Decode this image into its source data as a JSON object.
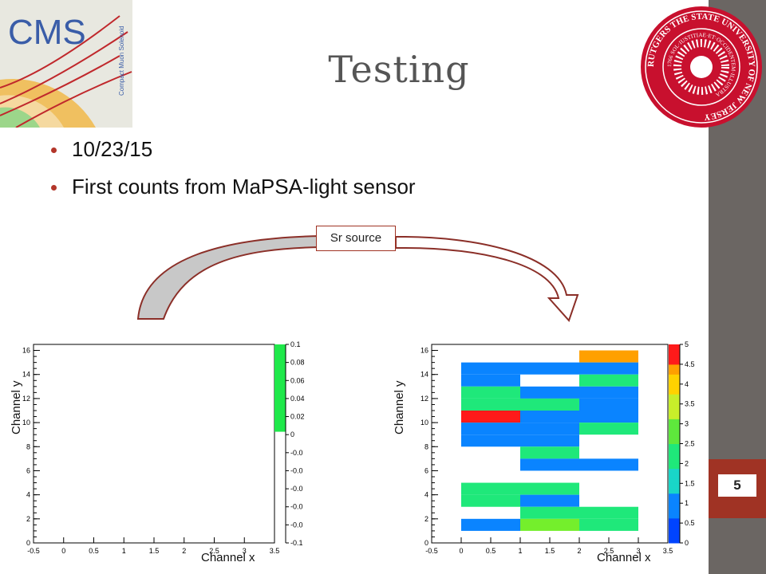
{
  "slide": {
    "title": "Testing",
    "bullets": [
      "10/23/15",
      "First counts from MaPSA-light sensor"
    ],
    "page_number": "5",
    "annotation": "Sr source"
  },
  "logos": {
    "cms": {
      "text": "CMS",
      "subtext": "Compact Muon Solenoid"
    },
    "rutgers": {
      "text": "RUTGERS THE STATE UNIVERSITY OF NEW JERSEY",
      "inner": "1766 SOL·IUSTITIAE·ET·OCCIDENTEM·ILLUSTRA"
    }
  },
  "colors": {
    "accent": "#a03324",
    "sidebar": "#6b6663",
    "title": "#555555"
  },
  "chart_data": [
    {
      "type": "heatmap",
      "title": "",
      "xlabel": "Channel x",
      "ylabel": "Channel y",
      "xlim": [
        -0.5,
        3.5
      ],
      "ylim": [
        0,
        16.5
      ],
      "xticks": [
        "-0.5",
        "0",
        "0.5",
        "1",
        "1.5",
        "2",
        "2.5",
        "3",
        "3.5"
      ],
      "yticks": [
        "0",
        "2",
        "4",
        "6",
        "8",
        "10",
        "12",
        "14",
        "16"
      ],
      "colorbar": {
        "ticks": [
          "0.1",
          "0.08",
          "0.06",
          "0.04",
          "0.02",
          "0",
          "-0.0",
          "-0.0",
          "-0.0",
          "-0.0",
          "-0.0",
          "-0.1"
        ]
      },
      "cells": []
    },
    {
      "type": "heatmap",
      "title": "",
      "xlabel": "Channel x",
      "ylabel": "Channel y",
      "xlim": [
        -0.5,
        3.5
      ],
      "ylim": [
        0,
        16.5
      ],
      "xticks": [
        "-0.5",
        "0",
        "0.5",
        "1",
        "1.5",
        "2",
        "2.5",
        "3",
        "3.5"
      ],
      "yticks": [
        "0",
        "2",
        "4",
        "6",
        "8",
        "10",
        "12",
        "14",
        "16"
      ],
      "colorbar": {
        "min": 0,
        "max": 5,
        "ticks": [
          "5",
          "4.5",
          "4",
          "3.5",
          "3",
          "2.5",
          "2",
          "1.5",
          "1",
          "0.5",
          "0"
        ]
      },
      "cells": [
        {
          "x": 2.5,
          "y": 15,
          "v": 4
        },
        {
          "x": 0.5,
          "y": 14,
          "v": 1
        },
        {
          "x": 1.5,
          "y": 14,
          "v": 1
        },
        {
          "x": 2.5,
          "y": 14,
          "v": 1
        },
        {
          "x": 0.5,
          "y": 13,
          "v": 1
        },
        {
          "x": 2.5,
          "y": 13,
          "v": 2
        },
        {
          "x": 0.5,
          "y": 12,
          "v": 2
        },
        {
          "x": 1.5,
          "y": 12,
          "v": 1
        },
        {
          "x": 2.5,
          "y": 12,
          "v": 1
        },
        {
          "x": 0.5,
          "y": 11,
          "v": 2
        },
        {
          "x": 1.5,
          "y": 11,
          "v": 2
        },
        {
          "x": 2.5,
          "y": 11,
          "v": 1
        },
        {
          "x": 0.5,
          "y": 10,
          "v": 5
        },
        {
          "x": 1.5,
          "y": 10,
          "v": 1
        },
        {
          "x": 2.5,
          "y": 10,
          "v": 1
        },
        {
          "x": 0.5,
          "y": 9,
          "v": 1
        },
        {
          "x": 1.5,
          "y": 9,
          "v": 1
        },
        {
          "x": 2.5,
          "y": 9,
          "v": 2
        },
        {
          "x": 0.5,
          "y": 8,
          "v": 1
        },
        {
          "x": 1.5,
          "y": 8,
          "v": 1
        },
        {
          "x": 1.5,
          "y": 7,
          "v": 2
        },
        {
          "x": 1.5,
          "y": 6,
          "v": 1
        },
        {
          "x": 2.5,
          "y": 6,
          "v": 1
        },
        {
          "x": 0.5,
          "y": 4,
          "v": 2
        },
        {
          "x": 1.5,
          "y": 4,
          "v": 2
        },
        {
          "x": 0.5,
          "y": 3,
          "v": 2
        },
        {
          "x": 1.5,
          "y": 3,
          "v": 1
        },
        {
          "x": 1.5,
          "y": 2,
          "v": 2
        },
        {
          "x": 2.5,
          "y": 2,
          "v": 2
        },
        {
          "x": 0.5,
          "y": 1,
          "v": 1
        },
        {
          "x": 1.5,
          "y": 1,
          "v": 3
        },
        {
          "x": 2.5,
          "y": 1,
          "v": 2
        }
      ]
    }
  ]
}
